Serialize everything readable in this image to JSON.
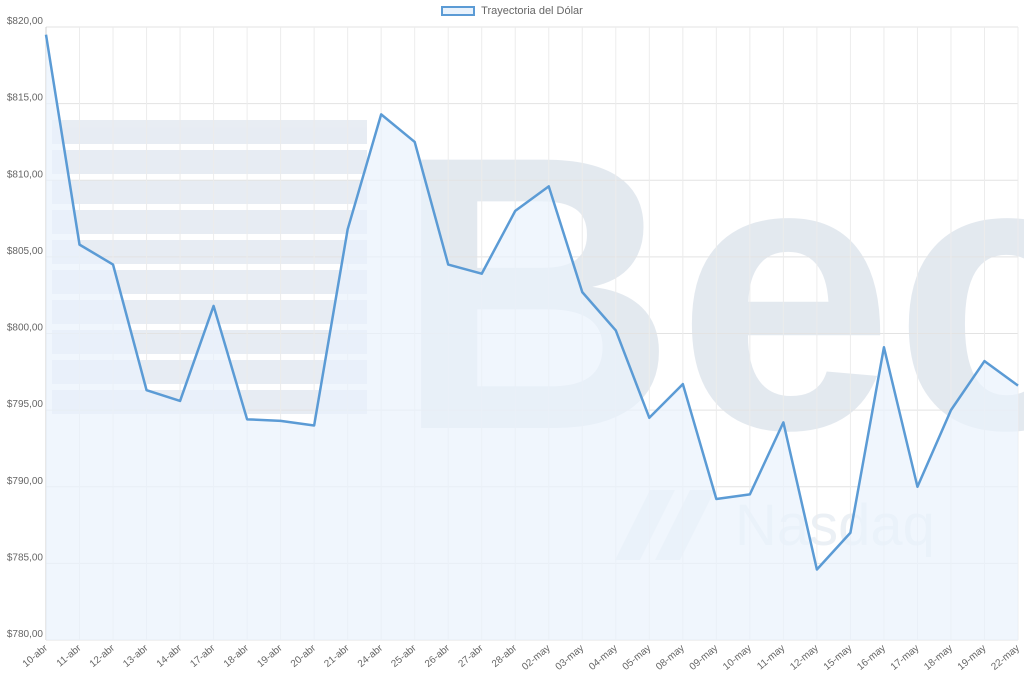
{
  "watermark": {
    "logo_text": "Bec",
    "sub_text": "Nasdaq"
  },
  "chart_data": {
    "type": "area",
    "title": "",
    "xlabel": "",
    "ylabel": "",
    "categories": [
      "10-abr",
      "11-abr",
      "12-abr",
      "13-abr",
      "14-abr",
      "17-abr",
      "18-abr",
      "19-abr",
      "20-abr",
      "21-abr",
      "24-abr",
      "25-abr",
      "26-abr",
      "27-abr",
      "28-abr",
      "02-may",
      "03-may",
      "04-may",
      "05-may",
      "08-may",
      "09-may",
      "10-may",
      "11-may",
      "12-may",
      "15-may",
      "16-may",
      "17-may",
      "18-may",
      "19-may",
      "22-may"
    ],
    "series": [
      {
        "name": "Trayectoria del Dólar",
        "color": "#5b9bd5",
        "fill": "#e9f2fc",
        "values": [
          819.5,
          805.8,
          804.5,
          796.3,
          795.6,
          801.8,
          794.4,
          794.3,
          794.0,
          806.8,
          814.3,
          812.5,
          804.5,
          803.9,
          808.0,
          809.6,
          802.7,
          800.2,
          794.5,
          796.7,
          789.2,
          789.5,
          794.2,
          784.6,
          787.0,
          799.1,
          790.0,
          795.0,
          798.2,
          796.6
        ]
      }
    ],
    "ylim": [
      780,
      820
    ],
    "yticks": [
      "$780,00",
      "$785,00",
      "$790,00",
      "$795,00",
      "$800,00",
      "$805,00",
      "$810,00",
      "$815,00",
      "$820,00"
    ],
    "grid": true,
    "legend_position": "top-center"
  }
}
